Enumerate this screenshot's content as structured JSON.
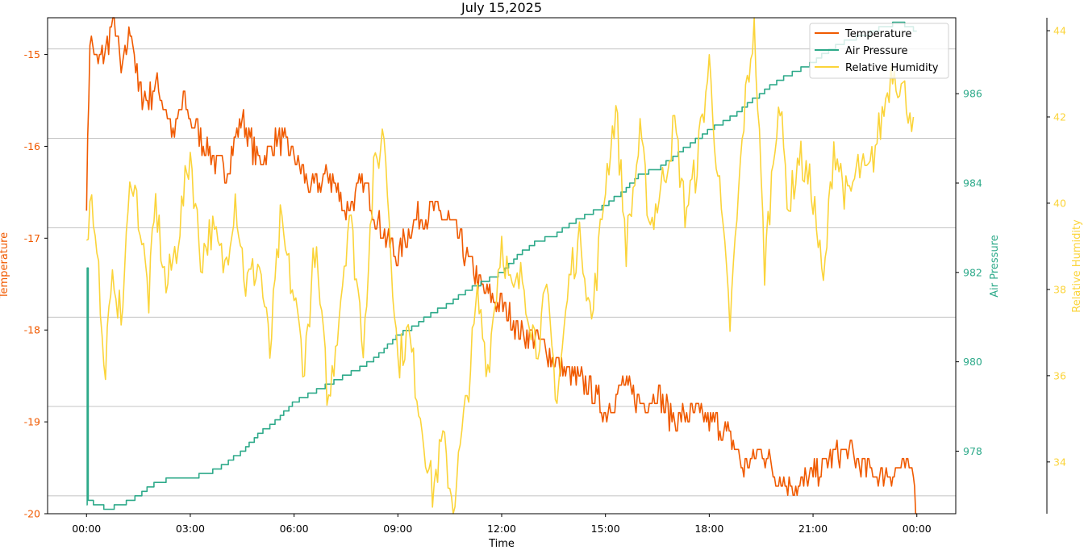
{
  "chart_data": {
    "type": "line",
    "title": "July 15,2025",
    "xlabel": "Time",
    "x_ticks": [
      "00:00",
      "03:00",
      "06:00",
      "09:00",
      "12:00",
      "15:00",
      "18:00",
      "21:00",
      "00:00"
    ],
    "x_range_hours": [
      -1.125,
      25.125
    ],
    "grid": "horizontal",
    "legend_position": "top-right",
    "series": [
      {
        "name": "Temperature",
        "axis": "left",
        "ylabel": "Temperature",
        "color": "#f05a00",
        "ylim": [
          -20,
          -14.6
        ],
        "yticks": [
          -20,
          -19,
          -18,
          -17,
          -16,
          -15
        ],
        "x_hours": [
          0,
          0.1,
          0.3,
          0.6,
          0.8,
          1.0,
          1.3,
          1.5,
          1.8,
          2.0,
          2.3,
          2.5,
          2.8,
          3.0,
          3.3,
          3.6,
          4.0,
          4.5,
          5.0,
          5.5,
          6.0,
          6.5,
          7.0,
          7.5,
          8.0,
          8.5,
          9.0,
          9.5,
          10.0,
          10.5,
          11.0,
          11.5,
          12.0,
          12.5,
          13.0,
          13.5,
          14.0,
          14.5,
          15.0,
          15.5,
          16.0,
          16.5,
          17.0,
          17.5,
          18.0,
          18.5,
          19.0,
          19.5,
          20.0,
          20.5,
          21.0,
          21.5,
          22.0,
          22.5,
          23.0,
          23.5,
          23.9,
          24.0
        ],
        "values": [
          -16.6,
          -14.8,
          -15.1,
          -14.9,
          -14.6,
          -15.2,
          -14.7,
          -15.4,
          -15.5,
          -15.3,
          -15.6,
          -15.9,
          -15.5,
          -15.7,
          -15.9,
          -16.1,
          -16.3,
          -15.7,
          -16.2,
          -15.9,
          -16.1,
          -16.5,
          -16.3,
          -16.7,
          -16.4,
          -16.9,
          -17.2,
          -16.8,
          -16.7,
          -16.8,
          -17.2,
          -17.6,
          -17.7,
          -18.0,
          -18.1,
          -18.3,
          -18.5,
          -18.6,
          -18.9,
          -18.6,
          -18.8,
          -18.7,
          -19.0,
          -18.9,
          -19.0,
          -19.1,
          -19.5,
          -19.3,
          -19.6,
          -19.7,
          -19.6,
          -19.4,
          -19.3,
          -19.5,
          -19.6,
          -19.5,
          -19.5,
          -20.0
        ]
      },
      {
        "name": "Air Pressure",
        "axis": "right",
        "ylabel": "Air Pressure",
        "color": "#2eaa8a",
        "ylim": [
          976.6,
          987.7
        ],
        "yticks": [
          978,
          980,
          982,
          984,
          986
        ],
        "x_hours": [
          0,
          0.02,
          0.05,
          0.3,
          0.6,
          1.0,
          1.5,
          2.0,
          2.5,
          3.0,
          3.5,
          4.0,
          4.5,
          5.0,
          5.5,
          6.0,
          6.5,
          7.0,
          7.5,
          8.0,
          8.5,
          9.0,
          9.5,
          10.0,
          10.5,
          11.0,
          11.5,
          12.0,
          12.5,
          13.0,
          13.5,
          14.0,
          14.5,
          15.0,
          15.5,
          16.0,
          16.5,
          17.0,
          17.5,
          18.0,
          18.5,
          19.0,
          19.5,
          20.0,
          20.5,
          21.0,
          21.5,
          22.0,
          22.5,
          23.0,
          23.5,
          24.0
        ],
        "values": [
          976.8,
          982.1,
          976.9,
          976.8,
          976.7,
          976.8,
          977.0,
          977.3,
          977.4,
          977.4,
          977.5,
          977.7,
          978.0,
          978.4,
          978.7,
          979.1,
          979.3,
          979.5,
          979.7,
          979.9,
          980.2,
          980.6,
          980.8,
          981.1,
          981.3,
          981.6,
          981.8,
          982.0,
          982.4,
          982.7,
          982.8,
          983.1,
          983.3,
          983.5,
          983.8,
          984.2,
          984.3,
          984.6,
          984.9,
          985.2,
          985.4,
          985.7,
          986.0,
          986.3,
          986.5,
          986.7,
          987.0,
          987.2,
          987.3,
          987.5,
          987.6,
          987.4
        ]
      },
      {
        "name": "Relative Humidity",
        "axis": "right-outer",
        "ylabel": "Relative Humidity",
        "color": "#fbd43a",
        "ylim": [
          32.8,
          44.3
        ],
        "yticks": [
          34,
          36,
          38,
          40,
          42,
          44
        ],
        "x_hours": [
          0,
          0.1,
          0.3,
          0.5,
          0.8,
          1.0,
          1.3,
          1.5,
          1.8,
          2.0,
          2.3,
          2.6,
          3.0,
          3.3,
          3.6,
          4.0,
          4.3,
          4.6,
          5.0,
          5.3,
          5.6,
          6.0,
          6.3,
          6.6,
          7.0,
          7.3,
          7.6,
          8.0,
          8.3,
          8.6,
          9.0,
          9.3,
          9.6,
          10.0,
          10.3,
          10.6,
          11.0,
          11.3,
          11.6,
          12.0,
          12.3,
          12.6,
          13.0,
          13.3,
          13.6,
          14.0,
          14.3,
          14.6,
          15.0,
          15.3,
          15.6,
          16.0,
          16.3,
          16.6,
          17.0,
          17.3,
          17.6,
          18.0,
          18.3,
          18.6,
          19.0,
          19.3,
          19.6,
          20.0,
          20.3,
          20.6,
          21.0,
          21.3,
          21.6,
          22.0,
          22.3,
          22.6,
          23.0,
          23.3,
          23.6,
          23.9
        ],
        "values": [
          38.8,
          40.3,
          39.2,
          36.0,
          38.4,
          37.2,
          40.8,
          39.8,
          37.8,
          40.0,
          38.0,
          39.0,
          41.2,
          38.7,
          39.4,
          38.5,
          40.2,
          38.1,
          38.6,
          36.5,
          39.5,
          37.8,
          36.2,
          39.0,
          35.3,
          37.5,
          39.8,
          36.8,
          40.6,
          41.7,
          36.3,
          37.0,
          35.4,
          33.3,
          34.5,
          33.0,
          35.5,
          37.8,
          36.2,
          39.2,
          37.8,
          38.3,
          36.7,
          37.8,
          35.5,
          38.5,
          39.2,
          37.2,
          40.5,
          42.2,
          39.0,
          41.5,
          39.5,
          40.3,
          41.8,
          39.8,
          40.7,
          43.2,
          40.2,
          37.2,
          42.0,
          44.2,
          38.5,
          42.5,
          39.9,
          41.1,
          40.2,
          38.0,
          41.4,
          40.0,
          40.8,
          40.6,
          42.0,
          43.2,
          42.6,
          42.0
        ]
      }
    ]
  }
}
